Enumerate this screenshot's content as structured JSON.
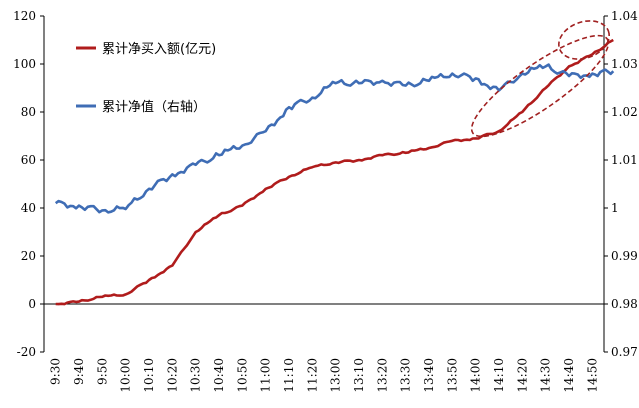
{
  "chart_data": {
    "type": "line",
    "title": "",
    "xlabel": "",
    "ylabel": "",
    "x_tick_labels": [
      "9:30",
      "9:40",
      "9:50",
      "10:00",
      "10:10",
      "10:20",
      "10:30",
      "10:40",
      "10:50",
      "11:00",
      "11:10",
      "11:20",
      "13:00",
      "13:10",
      "13:20",
      "13:30",
      "13:40",
      "13:50",
      "14:00",
      "14:10",
      "14:20",
      "14:30",
      "14:40",
      "14:50"
    ],
    "y_left": {
      "ticks": [
        120,
        100,
        80,
        60,
        40,
        20,
        0,
        -20
      ],
      "ylim": [
        -20,
        120
      ]
    },
    "y_right": {
      "ticks": [
        "1.04",
        "1.03",
        "1.02",
        "1.01",
        "1",
        "0.99",
        "0.98",
        "0.97"
      ],
      "ylim": [
        0.97,
        1.04
      ]
    },
    "legend_position": "top-left",
    "grid": false,
    "series": [
      {
        "name": "累计净买入额(亿元)",
        "axis": "left",
        "color": "#b01c1c",
        "x": [
          "9:30",
          "9:40",
          "9:50",
          "10:00",
          "10:10",
          "10:20",
          "10:30",
          "10:40",
          "10:50",
          "11:00",
          "11:10",
          "11:20",
          "13:00",
          "13:10",
          "13:20",
          "13:30",
          "13:40",
          "13:50",
          "14:00",
          "14:10",
          "14:20",
          "14:30",
          "14:40",
          "14:50",
          "15:00"
        ],
        "values": [
          0,
          1,
          3,
          4,
          10,
          16,
          30,
          37,
          41,
          48,
          53,
          57,
          59,
          60,
          62,
          63,
          65,
          68,
          69,
          72,
          80,
          90,
          99,
          104,
          110
        ]
      },
      {
        "name": "累计净值（右轴）",
        "axis": "right",
        "color": "#3f6db5",
        "x": [
          "9:30",
          "9:40",
          "9:50",
          "10:00",
          "10:10",
          "10:20",
          "10:30",
          "10:40",
          "10:50",
          "11:00",
          "11:10",
          "11:20",
          "13:00",
          "13:10",
          "13:20",
          "13:30",
          "13:40",
          "13:50",
          "14:00",
          "14:10",
          "14:20",
          "14:30",
          "14:40",
          "14:50",
          "15:00"
        ],
        "values": [
          1.001,
          1.0005,
          0.9995,
          0.9998,
          1.004,
          1.007,
          1.009,
          1.011,
          1.013,
          1.016,
          1.021,
          1.023,
          1.026,
          1.026,
          1.0265,
          1.0255,
          1.0265,
          1.028,
          1.027,
          1.0245,
          1.028,
          1.0295,
          1.0275,
          1.028,
          1.0285
        ]
      }
    ],
    "annotations": [
      {
        "type": "dashed-ellipse",
        "color": "#a02020",
        "target": "final-hour-rise"
      }
    ]
  }
}
